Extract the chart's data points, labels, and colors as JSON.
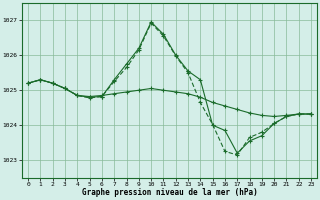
{
  "title": "Graphe pression niveau de la mer (hPa)",
  "bg_color": "#d4eee8",
  "grid_color": "#88bb99",
  "line_color": "#1a6b2a",
  "ylim": [
    1022.5,
    1027.5
  ],
  "yticks": [
    1023,
    1024,
    1025,
    1026,
    1027
  ],
  "xlim": [
    -0.5,
    23.5
  ],
  "xticks": [
    0,
    1,
    2,
    3,
    4,
    5,
    6,
    7,
    8,
    9,
    10,
    11,
    12,
    13,
    14,
    15,
    16,
    17,
    18,
    19,
    20,
    21,
    22,
    23
  ],
  "s1_y": [
    1025.2,
    1025.3,
    1025.2,
    1025.05,
    1024.85,
    1024.82,
    1024.85,
    1024.9,
    1024.95,
    1025.0,
    1025.05,
    1025.0,
    1024.95,
    1024.9,
    1024.8,
    1024.65,
    1024.55,
    1024.45,
    1024.35,
    1024.28,
    1024.25,
    1024.28,
    1024.32,
    1024.32
  ],
  "s2_y": [
    1025.2,
    1025.3,
    1025.2,
    1025.05,
    1024.85,
    1024.8,
    1024.82,
    1025.3,
    1025.75,
    1026.2,
    1026.95,
    1026.6,
    1026.0,
    1025.55,
    1025.3,
    1024.0,
    1023.85,
    1023.2,
    1023.55,
    1023.7,
    1024.05,
    1024.25,
    1024.32,
    1024.32
  ],
  "s3_y": [
    1025.2,
    1025.3,
    1025.2,
    1025.05,
    1024.85,
    1024.78,
    1024.82,
    1025.25,
    1025.65,
    1026.15,
    1026.92,
    1026.55,
    1025.98,
    1025.5,
    1024.65,
    1024.02,
    1023.25,
    1023.15,
    1023.65,
    1023.8,
    1024.05,
    1024.25,
    1024.32,
    1024.32
  ]
}
